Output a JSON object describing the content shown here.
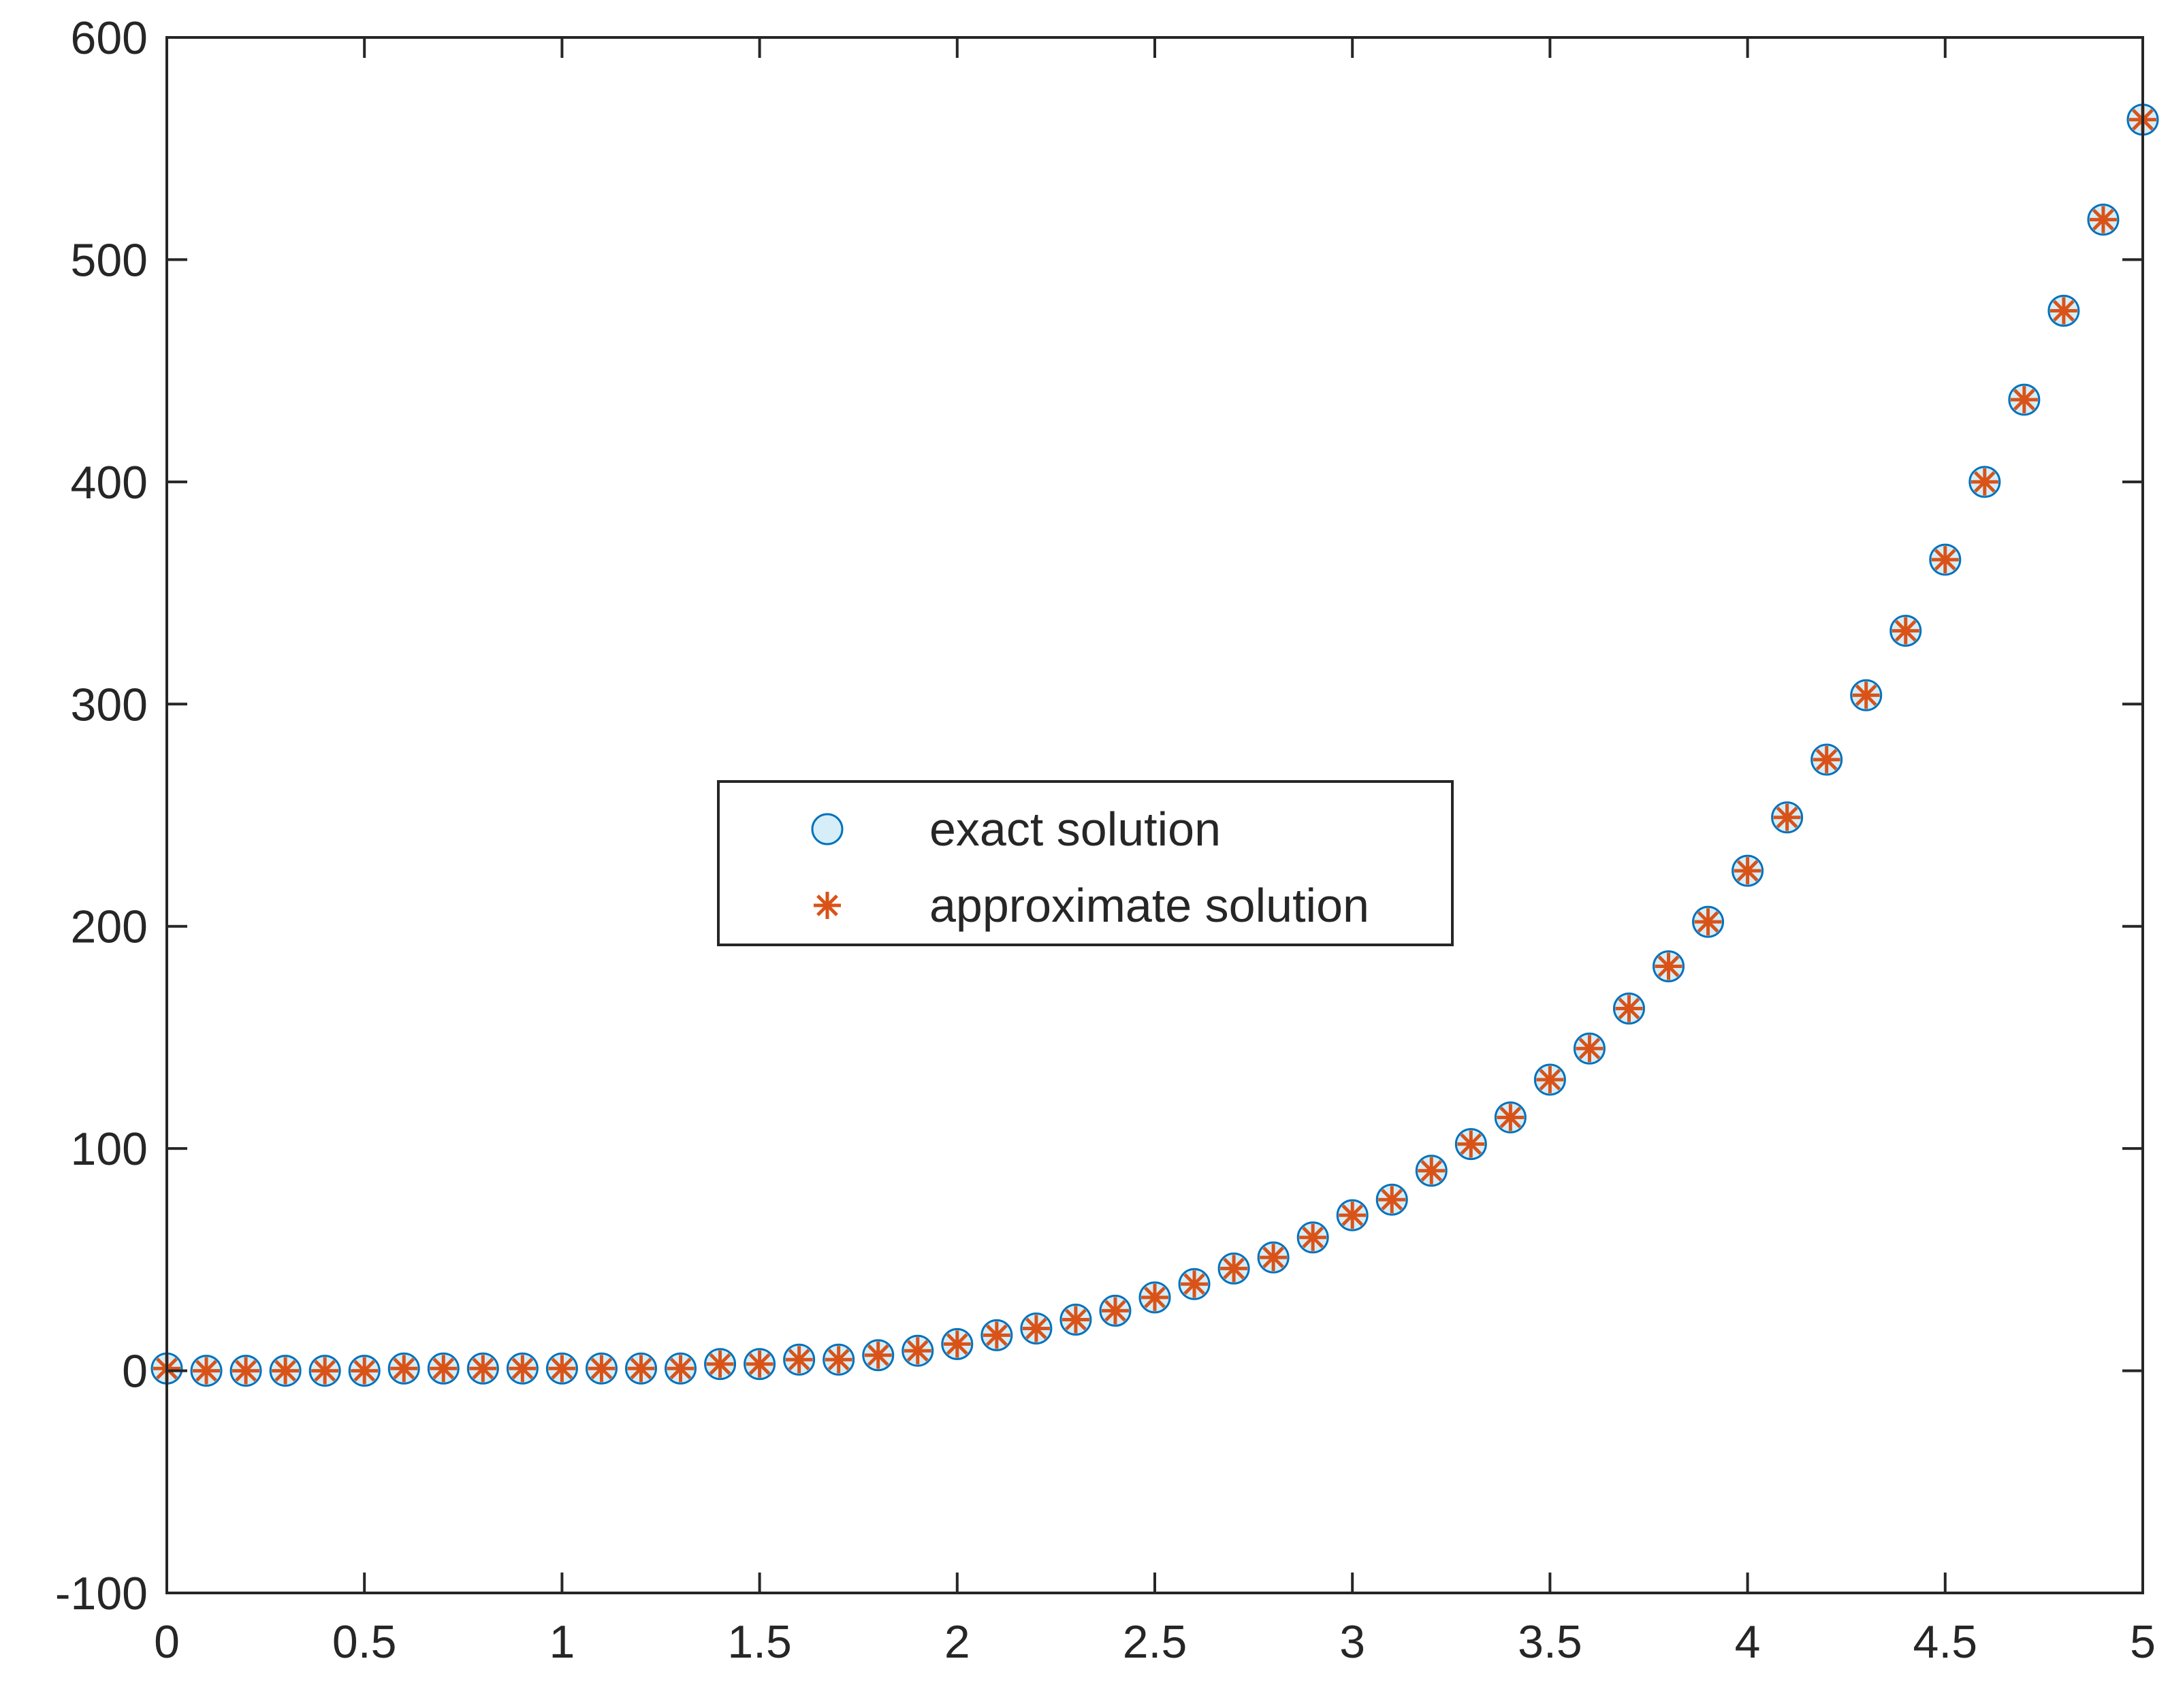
{
  "chart_data": {
    "type": "scatter",
    "xlim": [
      0,
      5
    ],
    "ylim": [
      -100,
      600
    ],
    "x_ticks": [
      "0",
      "0.5",
      "1",
      "1.5",
      "2",
      "2.5",
      "3",
      "3.5",
      "4",
      "4.5",
      "5"
    ],
    "y_ticks": [
      "-100",
      "0",
      "100",
      "200",
      "300",
      "400",
      "500",
      "600"
    ],
    "grid": false,
    "legend_position": "center",
    "x": [
      0.0,
      0.1,
      0.2,
      0.3,
      0.4,
      0.5,
      0.6,
      0.7,
      0.8,
      0.9,
      1.0,
      1.1,
      1.2,
      1.3,
      1.4,
      1.5,
      1.6,
      1.7,
      1.8,
      1.9,
      2.0,
      2.1,
      2.2,
      2.3,
      2.4,
      2.5,
      2.6,
      2.7,
      2.8,
      2.9,
      3.0,
      3.1,
      3.2,
      3.3,
      3.4,
      3.5,
      3.6,
      3.7,
      3.8,
      3.9,
      4.0,
      4.1,
      4.2,
      4.3,
      4.4,
      4.5,
      4.6,
      4.7,
      4.8,
      4.9,
      5.0
    ],
    "series": [
      {
        "name": "exact solution",
        "marker": "circle",
        "color": "#0072BD",
        "fill": "#d6eef8",
        "values": [
          1,
          0,
          0,
          0,
          0,
          0,
          1,
          1,
          1,
          1,
          1,
          1,
          1,
          1,
          3,
          3,
          5,
          5,
          7,
          9,
          12,
          16,
          19,
          23,
          27,
          33,
          39,
          46,
          51,
          60,
          70,
          77,
          90,
          102,
          114,
          131,
          145,
          163,
          182,
          202,
          225,
          249,
          275,
          304,
          333,
          365,
          400,
          437,
          477,
          518,
          563
        ]
      },
      {
        "name": "approximate solution",
        "marker": "asterisk",
        "color": "#D95319",
        "values": [
          1,
          0,
          0,
          0,
          0,
          0,
          1,
          1,
          1,
          1,
          1,
          1,
          1,
          1,
          3,
          3,
          5,
          5,
          7,
          9,
          12,
          16,
          19,
          23,
          27,
          33,
          39,
          46,
          51,
          60,
          70,
          77,
          90,
          102,
          114,
          131,
          145,
          163,
          182,
          202,
          225,
          249,
          275,
          304,
          333,
          365,
          400,
          437,
          477,
          518,
          563
        ]
      }
    ]
  }
}
